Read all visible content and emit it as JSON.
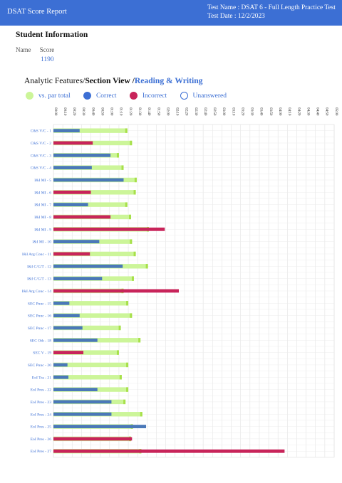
{
  "header": {
    "app_title": "DSAT Score Report",
    "test_name": "Test Name : DSAT 6 - Full Length Practice Test",
    "test_date": "Test Date : 12/2/2023"
  },
  "student": {
    "section_title": "Student Information",
    "name_label": "Name",
    "score_label": "Score",
    "score_value": "1190"
  },
  "view": {
    "prefix": "Analytic Features/",
    "section": "Section View /",
    "subject": "Reading & Writing"
  },
  "legend": {
    "par": "vs. par total",
    "correct": "Correct",
    "incorrect": "Incorrect",
    "unanswered": "Unanswered"
  },
  "colors": {
    "header": "#3c6fd4",
    "correct": "#4a78b8",
    "incorrect": "#c8245a",
    "par": "#ccf599",
    "par_end": "#a7e04a",
    "unanswered_border": "#3c6fd4"
  },
  "chart_data": {
    "type": "bar",
    "orientation": "horizontal",
    "x_unit": "mm:ss",
    "xlim": [
      0,
      300
    ],
    "tick_labels": [
      "00:00",
      "00:10",
      "00:20",
      "00:30",
      "00:40",
      "00:50",
      "01:00",
      "01:10",
      "01:20",
      "01:30",
      "01:40",
      "01:50",
      "02:00",
      "02:10",
      "02:20",
      "02:30",
      "02:40",
      "02:50",
      "03:00",
      "03:10",
      "03:20",
      "03:30",
      "03:40",
      "03:50",
      "04:00",
      "04:10",
      "04:20",
      "04:30",
      "04:40",
      "04:50",
      "05:00"
    ],
    "categories": [
      "C&S V/C - 1",
      "C&S V/C - 2",
      "C&S V/C - 3",
      "C&S V/C - 4",
      "I&I MI - 5",
      "I&I MI - 6",
      "I&I MI - 7",
      "I&I MI - 8",
      "I&I MI - 9",
      "I&I MI - 10",
      "I&I Arg Conc - 11",
      "I&I C/G/T - 12",
      "I&I C/G/T - 13",
      "I&I Arg Conc - 14",
      "SEC Punc - 15",
      "SEC Punc - 16",
      "SEC Punc - 17",
      "SEC Oth - 18",
      "SEC V - 19",
      "SEC Punc - 20",
      "EoI Tra - 21",
      "EoI Pres - 22",
      "EoI Pres - 23",
      "EoI Pres - 24",
      "EoI Pres - 25",
      "EoI Pres - 26",
      "EoI Pres - 27"
    ],
    "par": [
      79,
      84,
      70,
      75,
      89,
      88,
      79,
      83,
      102,
      84,
      88,
      101,
      86,
      75,
      80,
      84,
      72,
      93,
      70,
      80,
      73,
      80,
      77,
      95,
      85,
      83,
      94
    ],
    "time": [
      28,
      42,
      61,
      41,
      75,
      40,
      37,
      61,
      119,
      49,
      39,
      74,
      52,
      134,
      17,
      28,
      31,
      47,
      32,
      15,
      16,
      47,
      62,
      62,
      99,
      84,
      247
    ],
    "result": [
      "correct",
      "incorrect",
      "correct",
      "correct",
      "correct",
      "incorrect",
      "correct",
      "incorrect",
      "incorrect",
      "correct",
      "incorrect",
      "correct",
      "correct",
      "incorrect",
      "correct",
      "correct",
      "correct",
      "correct",
      "incorrect",
      "correct",
      "correct",
      "correct",
      "correct",
      "correct",
      "correct",
      "incorrect",
      "incorrect"
    ]
  }
}
